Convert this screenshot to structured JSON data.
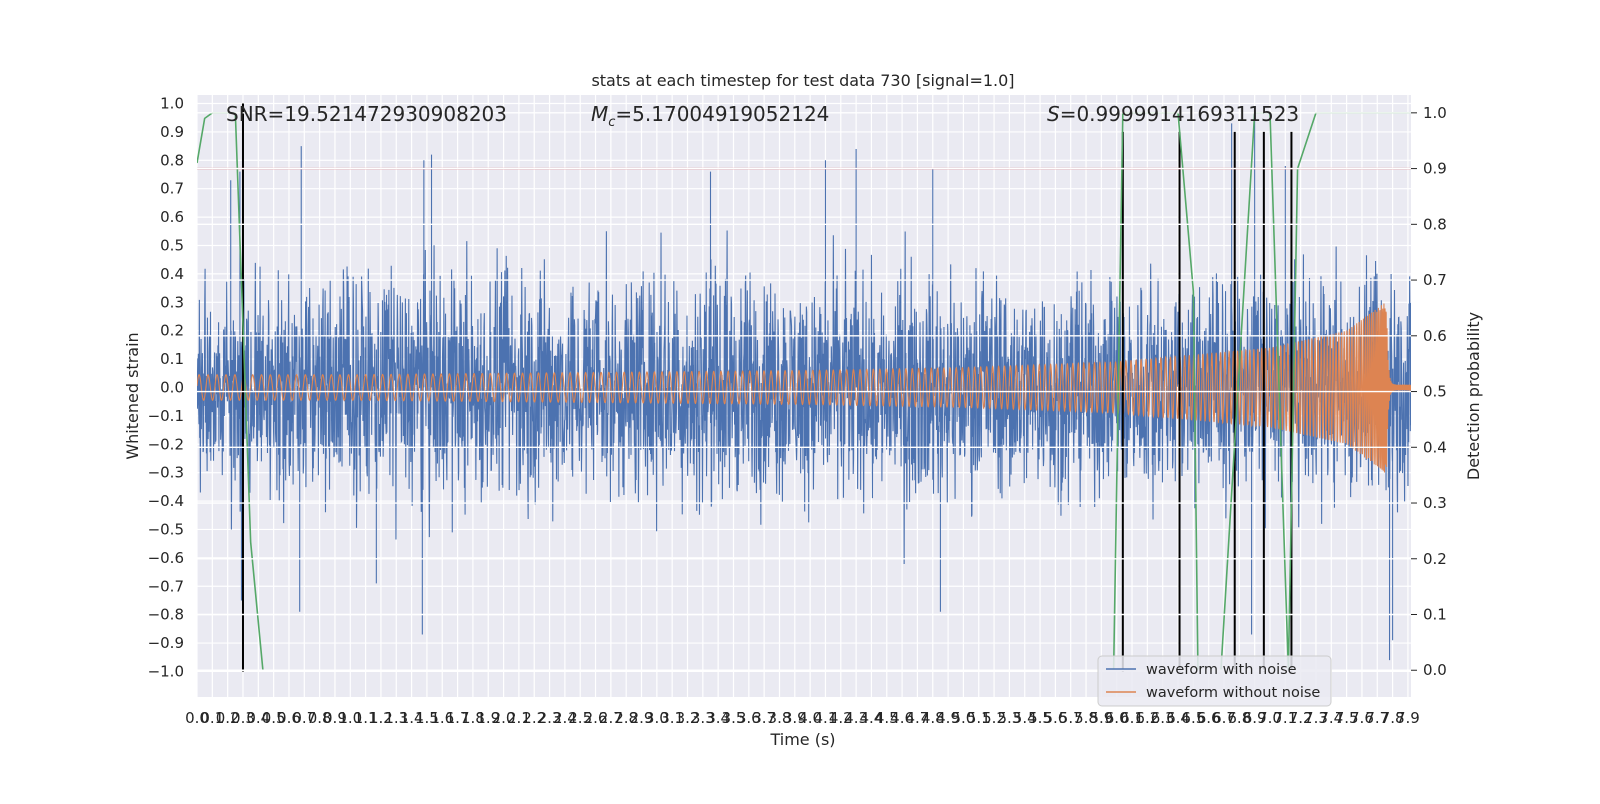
{
  "chart_data": {
    "type": "line",
    "title": "stats at each timestep for test data 730 [signal=1.0]",
    "xlabel": "Time (s)",
    "ylabel": "Whitened strain",
    "y2label": "Detection probability",
    "xlim": [
      0.0,
      7.92
    ],
    "ylim": [
      -1.09,
      1.03
    ],
    "y2lim": [
      -0.048,
      1.032
    ],
    "y_ticks": [
      "1.0",
      "0.9",
      "0.8",
      "0.7",
      "0.6",
      "0.5",
      "0.4",
      "0.3",
      "0.2",
      "0.1",
      "0.0",
      "-0.1",
      "-0.2",
      "-0.3",
      "-0.4",
      "-0.5",
      "-0.6",
      "-0.7",
      "-0.8",
      "-0.9",
      "-1.0"
    ],
    "y2_ticks": [
      "1.0",
      "0.9",
      "0.8",
      "0.7",
      "0.6",
      "0.5",
      "0.4",
      "0.3",
      "0.2",
      "0.1",
      "0.0"
    ],
    "x_ticks": [
      "0.0",
      "0.1",
      "0.2",
      "0.3",
      "0.4",
      "0.5",
      "0.6",
      "0.7",
      "0.8",
      "0.9",
      "1.0",
      "1.1",
      "1.2",
      "1.3",
      "1.4",
      "1.5",
      "1.6",
      "1.7",
      "1.8",
      "1.9",
      "2.0",
      "2.1",
      "2.2",
      "2.3",
      "2.4",
      "2.5",
      "2.6",
      "2.7",
      "2.8",
      "2.9",
      "3.0",
      "3.1",
      "3.2",
      "3.3",
      "3.4",
      "3.5",
      "3.6",
      "3.7",
      "3.8",
      "3.9",
      "4.0",
      "4.1",
      "4.2",
      "4.3",
      "4.4",
      "4.5",
      "4.6",
      "4.7",
      "4.8",
      "4.9",
      "5.0",
      "5.1",
      "5.2",
      "5.3",
      "5.4",
      "5.5",
      "5.6",
      "5.7",
      "5.8",
      "5.9",
      "6.0",
      "6.1",
      "6.2",
      "6.3",
      "6.4",
      "6.5",
      "6.6",
      "6.7",
      "6.8",
      "6.9",
      "7.0",
      "7.1",
      "7.2",
      "7.3",
      "7.4",
      "7.5",
      "7.6",
      "7.7",
      "7.8",
      "7.9"
    ],
    "annotations": {
      "snr": "SNR=19.521472930908203",
      "mc_symbol": "M",
      "mc_sub": "c",
      "mc_value": "=5.17004919052124",
      "s_symbol": "S",
      "s_value": "=0.9999914169311523"
    },
    "threshold": {
      "value": 0.9,
      "axis": "y2",
      "color": "#c44e52"
    },
    "legend": {
      "position": "lower right",
      "entries": [
        {
          "label": "waveform with noise",
          "color": "#4c72b0"
        },
        {
          "label": "waveform without noise",
          "color": "#dd8452"
        }
      ]
    },
    "series": [
      {
        "name": "waveform with noise",
        "axis": "y",
        "color": "#4c72b0",
        "style": "noise",
        "envelope_t": [
          0.0,
          0.5,
          1.0,
          2.0,
          3.0,
          4.0,
          5.0,
          6.0,
          7.0,
          7.5,
          7.92
        ],
        "envelope_amp": [
          0.36,
          0.4,
          0.4,
          0.4,
          0.4,
          0.4,
          0.39,
          0.38,
          0.37,
          0.38,
          0.38
        ],
        "spikes": [
          {
            "t": 0.22,
            "y": 0.73
          },
          {
            "t": 0.28,
            "y": 0.76
          },
          {
            "t": 0.29,
            "y": -0.75
          },
          {
            "t": 0.68,
            "y": 0.85
          },
          {
            "t": 0.67,
            "y": -0.79
          },
          {
            "t": 1.17,
            "y": -0.69
          },
          {
            "t": 1.48,
            "y": 0.8
          },
          {
            "t": 1.53,
            "y": 0.82
          },
          {
            "t": 1.47,
            "y": -0.87
          },
          {
            "t": 3.35,
            "y": 0.76
          },
          {
            "t": 4.1,
            "y": 0.8
          },
          {
            "t": 4.3,
            "y": 0.84
          },
          {
            "t": 4.8,
            "y": 0.77
          },
          {
            "t": 4.85,
            "y": -0.79
          },
          {
            "t": 6.75,
            "y": 0.93
          },
          {
            "t": 6.9,
            "y": 0.95
          },
          {
            "t": 6.88,
            "y": -0.87
          },
          {
            "t": 7.1,
            "y": 0.78
          },
          {
            "t": 7.78,
            "y": -0.96
          },
          {
            "t": 7.8,
            "y": -0.89
          }
        ]
      },
      {
        "name": "waveform without noise",
        "axis": "y",
        "color": "#dd8452",
        "style": "chirp",
        "t_merge": 7.76,
        "amp_t": [
          0.0,
          1.0,
          2.0,
          3.0,
          4.0,
          5.0,
          6.0,
          7.0,
          7.5,
          7.7,
          7.76,
          7.92
        ],
        "amp": [
          0.045,
          0.045,
          0.05,
          0.055,
          0.06,
          0.07,
          0.09,
          0.14,
          0.2,
          0.28,
          0.31,
          0.01
        ]
      },
      {
        "name": "detection probability",
        "axis": "y2",
        "color": "#55a868",
        "t": [
          0.0,
          0.05,
          0.1,
          0.2,
          0.25,
          0.3,
          0.35,
          0.43,
          5.98,
          6.04,
          6.4,
          6.5,
          6.53,
          6.68,
          6.9,
          7.0,
          7.12,
          7.18,
          7.3,
          7.92
        ],
        "p": [
          0.91,
          0.99,
          1.0,
          1.0,
          1.0,
          0.62,
          0.23,
          0.0,
          0.0,
          1.0,
          1.0,
          0.68,
          0.0,
          0.0,
          1.0,
          1.0,
          0.0,
          0.9,
          1.0,
          1.0
        ]
      }
    ],
    "vertical_lines": {
      "color": "#000000",
      "t": [
        0.3,
        6.04,
        6.41,
        6.77,
        6.96,
        7.14
      ],
      "y_top": [
        1.0,
        0.9,
        0.9,
        0.9,
        0.9,
        0.9
      ],
      "y_bottom": [
        -1.0,
        -1.0,
        -1.0,
        -1.0,
        -1.0,
        -1.0
      ]
    }
  }
}
